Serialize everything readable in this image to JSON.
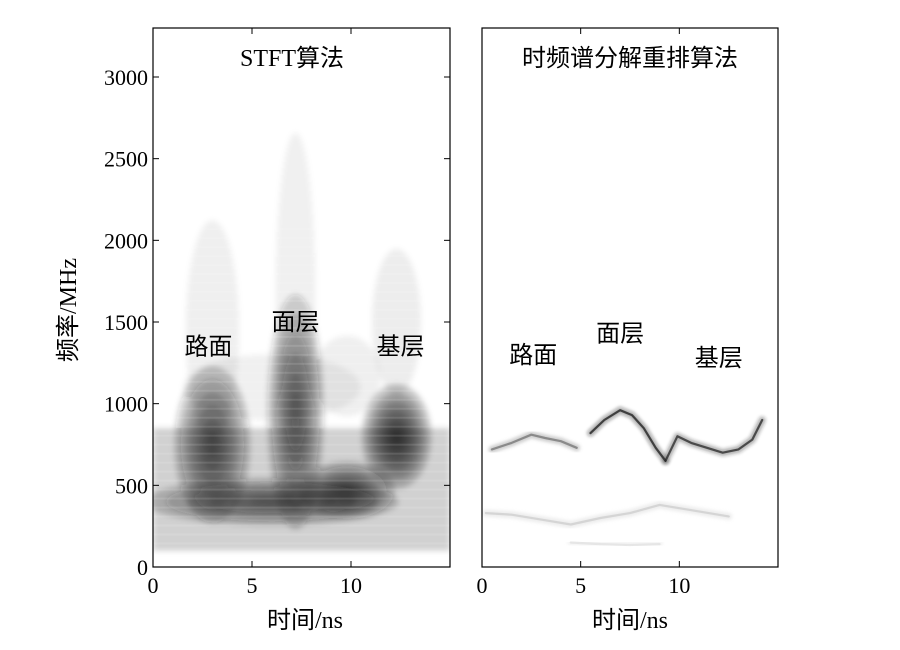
{
  "chart_data": [
    {
      "type": "heatmap",
      "title": "STFT算法",
      "xlabel": "时间/ns",
      "ylabel": "频率/MHz",
      "xlim": [
        0,
        15
      ],
      "ylim": [
        0,
        3300
      ],
      "x_ticks": [
        0,
        5,
        10
      ],
      "y_ticks": [
        0,
        500,
        1000,
        1500,
        2000,
        2500,
        3000
      ],
      "grid": false,
      "colormap": "gray (white = low, black = high)",
      "annotations": [
        {
          "text": "路面",
          "x": 2.8,
          "y": 1300
        },
        {
          "text": "面层",
          "x": 7.2,
          "y": 1450
        },
        {
          "text": "基层",
          "x": 12.5,
          "y": 1300
        }
      ],
      "energy_zones": [
        {
          "t": 3.0,
          "f": 750,
          "t_sigma": 1.2,
          "f_sigma": 300,
          "intensity": 0.9
        },
        {
          "t": 7.2,
          "f": 950,
          "t_sigma": 0.9,
          "f_sigma": 450,
          "intensity": 0.85
        },
        {
          "t": 12.3,
          "f": 800,
          "t_sigma": 1.1,
          "f_sigma": 200,
          "intensity": 1.0
        },
        {
          "t": 9.8,
          "f": 470,
          "t_sigma": 1.5,
          "f_sigma": 110,
          "intensity": 0.9
        },
        {
          "t": 6.0,
          "f": 400,
          "t_sigma": 4.0,
          "f_sigma": 90,
          "intensity": 0.85
        }
      ]
    },
    {
      "type": "heatmap",
      "title": "时频谱分解重排算法",
      "xlabel": "时间/ns",
      "ylabel": "",
      "xlim": [
        0,
        15
      ],
      "ylim": [
        0,
        3300
      ],
      "x_ticks": [
        0,
        5,
        10
      ],
      "grid": false,
      "colormap": "gray (white = low, black = high)",
      "annotations": [
        {
          "text": "路面",
          "x": 2.6,
          "y": 1250
        },
        {
          "text": "面层",
          "x": 7.0,
          "y": 1380
        },
        {
          "text": "基层",
          "x": 12.0,
          "y": 1230
        }
      ],
      "ridges": [
        {
          "name": "",
          "t": [
            0.5,
            1.5,
            2.5,
            3.2,
            4.0,
            4.8
          ],
          "f": [
            720,
            760,
            810,
            790,
            770,
            730
          ],
          "intensity": 0.55
        },
        {
          "name": "",
          "t": [
            5.5,
            6.2,
            7.0,
            7.6,
            8.2,
            8.8,
            9.3
          ],
          "f": [
            820,
            900,
            960,
            930,
            850,
            730,
            650
          ],
          "intensity": 0.9
        },
        {
          "name": "",
          "t": [
            9.3,
            9.9,
            10.6,
            11.4,
            12.2,
            13.0,
            13.7,
            14.2
          ],
          "f": [
            650,
            800,
            760,
            730,
            700,
            720,
            780,
            900
          ],
          "intensity": 0.85
        },
        {
          "name": "",
          "t": [
            0.2,
            1.5,
            3.0,
            4.5,
            6.0,
            7.5,
            9.0,
            10.5,
            12.5
          ],
          "f": [
            330,
            320,
            290,
            260,
            300,
            330,
            380,
            350,
            310
          ],
          "intensity": 0.2
        },
        {
          "name": "",
          "t": [
            4.5,
            6.0,
            7.5,
            9.0
          ],
          "f": [
            150,
            140,
            135,
            140
          ],
          "intensity": 0.12
        }
      ]
    }
  ]
}
